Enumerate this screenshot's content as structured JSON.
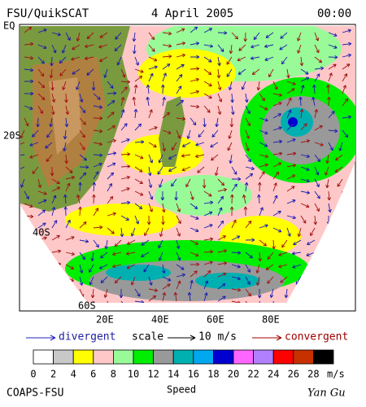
{
  "header": {
    "source": "FSU/QuikSCAT",
    "date": "4 April 2005",
    "time": "00:00"
  },
  "map": {
    "lat_labels": [
      "EQ",
      "20S",
      "40S",
      "60S"
    ],
    "lon_labels": [
      "20E",
      "40E",
      "60E",
      "80E"
    ]
  },
  "legend": {
    "divergent": "divergent",
    "scale": "scale",
    "scale_value": "10 m/s",
    "convergent": "convergent"
  },
  "colorbar": {
    "colors": [
      "#ffffff",
      "#c8c8c8",
      "#ffff00",
      "#ffc8c8",
      "#98fb98",
      "#00ee00",
      "#999999",
      "#00b0b0",
      "#00a8f0",
      "#0000d0",
      "#ff66ff",
      "#b080ff",
      "#ff0000",
      "#c83000",
      "#000000"
    ],
    "ticks": [
      0,
      2,
      4,
      6,
      8,
      10,
      12,
      14,
      16,
      18,
      20,
      22,
      24,
      26,
      28
    ],
    "unit": "m/s",
    "title": "Speed"
  },
  "footer": {
    "left": "COAPS-FSU",
    "right": "Yan Gu"
  }
}
